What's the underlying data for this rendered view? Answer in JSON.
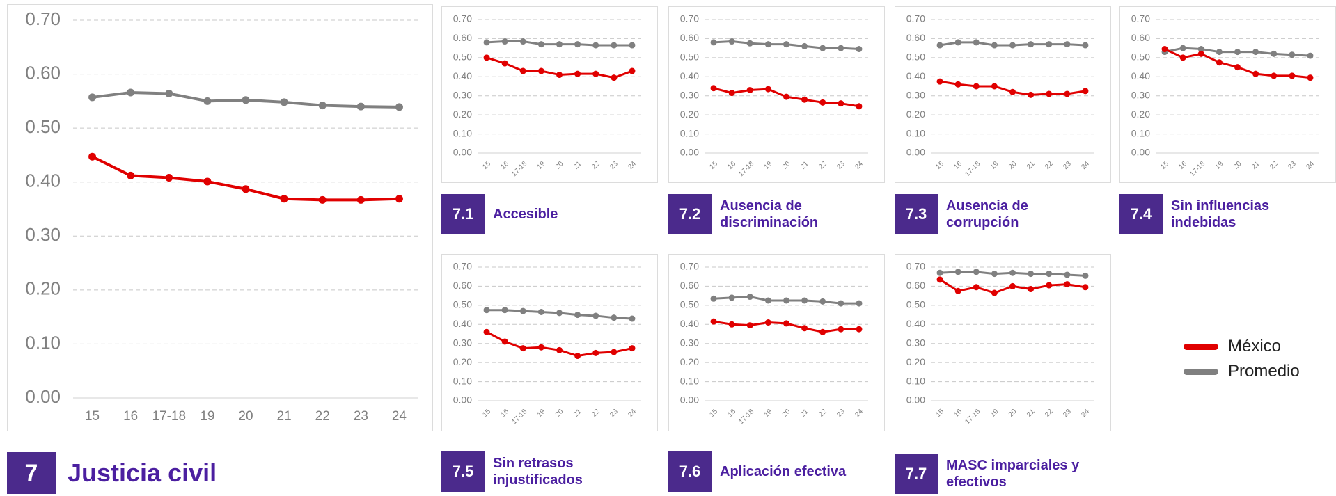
{
  "chart_data": [
    {
      "type": "line",
      "number": "7",
      "title": "Justicia civil",
      "categories": [
        "15",
        "16",
        "17-18",
        "19",
        "20",
        "21",
        "22",
        "23",
        "24"
      ],
      "series": [
        {
          "name": "México",
          "color": "#e00000",
          "values": [
            0.447,
            0.412,
            0.408,
            0.401,
            0.387,
            0.369,
            0.367,
            0.367,
            0.369
          ]
        },
        {
          "name": "Promedio",
          "color": "#808080",
          "values": [
            0.557,
            0.566,
            0.564,
            0.55,
            0.552,
            0.548,
            0.542,
            0.54,
            0.539
          ]
        }
      ],
      "ylim": [
        0,
        0.7
      ],
      "yticks": [
        {
          "value": 0,
          "label": "0.00"
        },
        {
          "value": 0.1,
          "label": "0.10"
        },
        {
          "value": 0.2,
          "label": "0.20"
        },
        {
          "value": 0.3,
          "label": "0.30"
        },
        {
          "value": 0.4,
          "label": "0.40"
        },
        {
          "value": 0.5,
          "label": "0.50"
        },
        {
          "value": 0.6,
          "label": "0.60"
        },
        {
          "value": 0.7,
          "label": "0.70"
        }
      ],
      "grid": true
    },
    {
      "type": "line",
      "number": "7.1",
      "title": "Accesible",
      "categories": [
        "15",
        "16",
        "17-18",
        "19",
        "20",
        "21",
        "22",
        "23",
        "24"
      ],
      "series": [
        {
          "color": "#e00000",
          "values": [
            0.5,
            0.47,
            0.43,
            0.43,
            0.41,
            0.415,
            0.415,
            0.395,
            0.43
          ]
        },
        {
          "color": "#808080",
          "values": [
            0.58,
            0.585,
            0.585,
            0.57,
            0.57,
            0.57,
            0.565,
            0.565,
            0.565
          ]
        }
      ],
      "ylim": [
        0,
        0.7
      ],
      "yticks": [
        {
          "value": 0,
          "label": "0.00"
        },
        {
          "value": 0.1,
          "label": "0.10"
        },
        {
          "value": 0.2,
          "label": "0.20"
        },
        {
          "value": 0.3,
          "label": "0.30"
        },
        {
          "value": 0.4,
          "label": "0.40"
        },
        {
          "value": 0.5,
          "label": "0.50"
        },
        {
          "value": 0.6,
          "label": "0.60"
        },
        {
          "value": 0.7,
          "label": "0.70"
        }
      ],
      "grid": true
    },
    {
      "type": "line",
      "number": "7.2",
      "title": "Ausencia de discriminación",
      "categories": [
        "15",
        "16",
        "17-18",
        "19",
        "20",
        "21",
        "22",
        "23",
        "24"
      ],
      "series": [
        {
          "color": "#e00000",
          "values": [
            0.34,
            0.315,
            0.33,
            0.335,
            0.295,
            0.28,
            0.265,
            0.26,
            0.245
          ]
        },
        {
          "color": "#808080",
          "values": [
            0.58,
            0.585,
            0.575,
            0.57,
            0.57,
            0.56,
            0.55,
            0.55,
            0.545
          ]
        }
      ],
      "ylim": [
        0,
        0.7
      ],
      "yticks": [
        {
          "value": 0,
          "label": "0.00"
        },
        {
          "value": 0.1,
          "label": "0.10"
        },
        {
          "value": 0.2,
          "label": "0.20"
        },
        {
          "value": 0.3,
          "label": "0.30"
        },
        {
          "value": 0.4,
          "label": "0.40"
        },
        {
          "value": 0.5,
          "label": "0.50"
        },
        {
          "value": 0.6,
          "label": "0.60"
        },
        {
          "value": 0.7,
          "label": "0.70"
        }
      ],
      "grid": true
    },
    {
      "type": "line",
      "number": "7.3",
      "title": "Ausencia de corrupción",
      "categories": [
        "15",
        "16",
        "17-18",
        "19",
        "20",
        "21",
        "22",
        "23",
        "24"
      ],
      "series": [
        {
          "color": "#e00000",
          "values": [
            0.375,
            0.36,
            0.35,
            0.35,
            0.32,
            0.305,
            0.31,
            0.31,
            0.325
          ]
        },
        {
          "color": "#808080",
          "values": [
            0.565,
            0.58,
            0.58,
            0.565,
            0.565,
            0.57,
            0.57,
            0.57,
            0.565
          ]
        }
      ],
      "ylim": [
        0,
        0.7
      ],
      "yticks": [
        {
          "value": 0,
          "label": "0.00"
        },
        {
          "value": 0.1,
          "label": "0.10"
        },
        {
          "value": 0.2,
          "label": "0.20"
        },
        {
          "value": 0.3,
          "label": "0.30"
        },
        {
          "value": 0.4,
          "label": "0.40"
        },
        {
          "value": 0.5,
          "label": "0.50"
        },
        {
          "value": 0.6,
          "label": "0.60"
        },
        {
          "value": 0.7,
          "label": "0.70"
        }
      ],
      "grid": true
    },
    {
      "type": "line",
      "number": "7.4",
      "title": "Sin influencias indebidas",
      "categories": [
        "15",
        "16",
        "17-18",
        "19",
        "20",
        "21",
        "22",
        "23",
        "24"
      ],
      "series": [
        {
          "color": "#e00000",
          "values": [
            0.545,
            0.5,
            0.52,
            0.475,
            0.45,
            0.415,
            0.405,
            0.405,
            0.395
          ]
        },
        {
          "color": "#808080",
          "values": [
            0.53,
            0.55,
            0.545,
            0.53,
            0.53,
            0.53,
            0.52,
            0.515,
            0.51
          ]
        }
      ],
      "ylim": [
        0,
        0.7
      ],
      "yticks": [
        {
          "value": 0,
          "label": "0.00"
        },
        {
          "value": 0.1,
          "label": "0.10"
        },
        {
          "value": 0.2,
          "label": "0.20"
        },
        {
          "value": 0.3,
          "label": "0.30"
        },
        {
          "value": 0.4,
          "label": "0.40"
        },
        {
          "value": 0.5,
          "label": "0.50"
        },
        {
          "value": 0.6,
          "label": "0.60"
        },
        {
          "value": 0.7,
          "label": "0.70"
        }
      ],
      "grid": true
    },
    {
      "type": "line",
      "number": "7.5",
      "title": "Sin retrasos injustificados",
      "categories": [
        "15",
        "16",
        "17-18",
        "19",
        "20",
        "21",
        "22",
        "23",
        "24"
      ],
      "series": [
        {
          "color": "#e00000",
          "values": [
            0.36,
            0.31,
            0.275,
            0.28,
            0.265,
            0.235,
            0.25,
            0.255,
            0.275
          ]
        },
        {
          "color": "#808080",
          "values": [
            0.475,
            0.475,
            0.47,
            0.465,
            0.46,
            0.45,
            0.445,
            0.435,
            0.43
          ]
        }
      ],
      "ylim": [
        0,
        0.7
      ],
      "yticks": [
        {
          "value": 0,
          "label": "0.00"
        },
        {
          "value": 0.1,
          "label": "0.10"
        },
        {
          "value": 0.2,
          "label": "0.20"
        },
        {
          "value": 0.3,
          "label": "0.30"
        },
        {
          "value": 0.4,
          "label": "0.40"
        },
        {
          "value": 0.5,
          "label": "0.50"
        },
        {
          "value": 0.6,
          "label": "0.60"
        },
        {
          "value": 0.7,
          "label": "0.70"
        }
      ],
      "grid": true
    },
    {
      "type": "line",
      "number": "7.6",
      "title": "Aplicación efectiva",
      "categories": [
        "15",
        "16",
        "17-18",
        "19",
        "20",
        "21",
        "22",
        "23",
        "24"
      ],
      "series": [
        {
          "color": "#e00000",
          "values": [
            0.415,
            0.4,
            0.395,
            0.41,
            0.405,
            0.38,
            0.36,
            0.375,
            0.375
          ]
        },
        {
          "color": "#808080",
          "values": [
            0.535,
            0.54,
            0.545,
            0.525,
            0.525,
            0.525,
            0.52,
            0.51,
            0.51
          ]
        }
      ],
      "ylim": [
        0,
        0.7
      ],
      "yticks": [
        {
          "value": 0,
          "label": "0.00"
        },
        {
          "value": 0.1,
          "label": "0.10"
        },
        {
          "value": 0.2,
          "label": "0.20"
        },
        {
          "value": 0.3,
          "label": "0.30"
        },
        {
          "value": 0.4,
          "label": "0.40"
        },
        {
          "value": 0.5,
          "label": "0.50"
        },
        {
          "value": 0.6,
          "label": "0.60"
        },
        {
          "value": 0.7,
          "label": "0.70"
        }
      ],
      "grid": true
    },
    {
      "type": "line",
      "number": "7.7",
      "title": "MASC imparciales y efectivos",
      "categories": [
        "15",
        "16",
        "17-18",
        "19",
        "20",
        "21",
        "22",
        "23",
        "24"
      ],
      "series": [
        {
          "color": "#e00000",
          "values": [
            0.635,
            0.575,
            0.595,
            0.565,
            0.6,
            0.585,
            0.605,
            0.61,
            0.595
          ]
        },
        {
          "color": "#808080",
          "values": [
            0.67,
            0.675,
            0.675,
            0.665,
            0.67,
            0.665,
            0.665,
            0.66,
            0.655
          ]
        }
      ],
      "ylim": [
        0,
        0.7
      ],
      "yticks": [
        {
          "value": 0,
          "label": "0.00"
        },
        {
          "value": 0.1,
          "label": "0.10"
        },
        {
          "value": 0.2,
          "label": "0.20"
        },
        {
          "value": 0.3,
          "label": "0.30"
        },
        {
          "value": 0.4,
          "label": "0.40"
        },
        {
          "value": 0.5,
          "label": "0.50"
        },
        {
          "value": 0.6,
          "label": "0.60"
        },
        {
          "value": 0.7,
          "label": "0.70"
        }
      ],
      "grid": true
    }
  ]
}
